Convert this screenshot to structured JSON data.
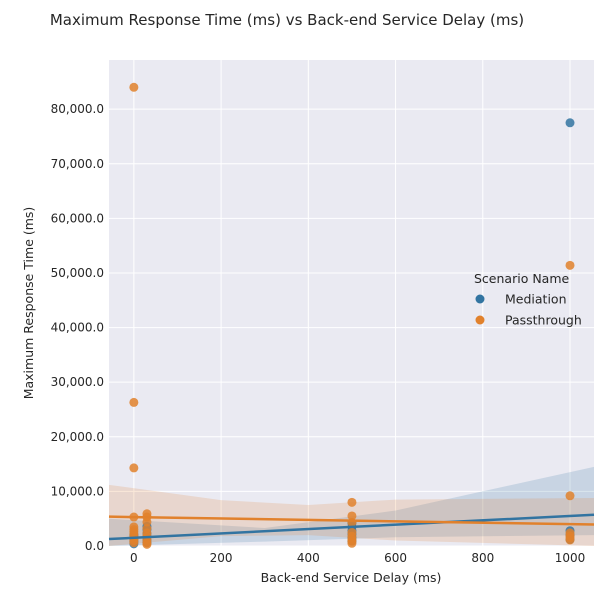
{
  "chart_data": {
    "type": "scatter",
    "title": "Maximum Response Time (ms) vs Back-end Service Delay (ms)",
    "xlabel": "Back-end Service Delay (ms)",
    "ylabel": "Maximum Response Time (ms)",
    "xlim": [
      -57,
      1055
    ],
    "ylim": [
      0,
      89000
    ],
    "xticks": [
      0,
      200,
      400,
      600,
      800,
      1000
    ],
    "xtick_labels": [
      "0",
      "200",
      "400",
      "600",
      "800",
      "1000"
    ],
    "yticks": [
      0,
      10000,
      20000,
      30000,
      40000,
      50000,
      60000,
      70000,
      80000
    ],
    "ytick_labels": [
      "0.0",
      "10,000.0",
      "20,000.0",
      "30,000.0",
      "40,000.0",
      "50,000.0",
      "60,000.0",
      "70,000.0",
      "80,000.0"
    ],
    "grid": true,
    "legend_title": "Scenario Name",
    "legend_position": "right",
    "series": [
      {
        "name": "Mediation",
        "color": "#3274a1",
        "points": [
          [
            0,
            400
          ],
          [
            0,
            800
          ],
          [
            0,
            1200
          ],
          [
            0,
            1600
          ],
          [
            0,
            2000
          ],
          [
            30,
            600
          ],
          [
            30,
            1100
          ],
          [
            30,
            1700
          ],
          [
            30,
            2300
          ],
          [
            30,
            3000
          ],
          [
            30,
            3600
          ],
          [
            500,
            900
          ],
          [
            500,
            1500
          ],
          [
            500,
            2200
          ],
          [
            500,
            2800
          ],
          [
            500,
            3500
          ],
          [
            500,
            4200
          ],
          [
            1000,
            1200
          ],
          [
            1000,
            2000
          ],
          [
            1000,
            2800
          ],
          [
            1000,
            77500
          ]
        ],
        "regression": {
          "intercept": 1500,
          "slope": 4.0
        },
        "ci": [
          [
            -57,
            -2500,
            5000
          ],
          [
            300,
            800,
            3300
          ],
          [
            600,
            1600,
            6500
          ],
          [
            1055,
            2000,
            14500
          ]
        ]
      },
      {
        "name": "Passthrough",
        "color": "#e1812c",
        "points": [
          [
            0,
            84000
          ],
          [
            0,
            26300
          ],
          [
            0,
            14300
          ],
          [
            0,
            5300
          ],
          [
            0,
            3500
          ],
          [
            0,
            3000
          ],
          [
            0,
            2600
          ],
          [
            0,
            2200
          ],
          [
            0,
            1800
          ],
          [
            0,
            1400
          ],
          [
            0,
            1000
          ],
          [
            0,
            600
          ],
          [
            30,
            5900
          ],
          [
            30,
            5300
          ],
          [
            30,
            4400
          ],
          [
            30,
            3200
          ],
          [
            30,
            2400
          ],
          [
            30,
            1800
          ],
          [
            30,
            1200
          ],
          [
            30,
            600
          ],
          [
            30,
            300
          ],
          [
            500,
            8000
          ],
          [
            500,
            5500
          ],
          [
            500,
            4300
          ],
          [
            500,
            2500
          ],
          [
            500,
            1800
          ],
          [
            500,
            1300
          ],
          [
            500,
            900
          ],
          [
            500,
            500
          ],
          [
            1000,
            51400
          ],
          [
            1000,
            9200
          ],
          [
            1000,
            2400
          ],
          [
            1000,
            1900
          ],
          [
            1000,
            1500
          ],
          [
            1000,
            1100
          ]
        ],
        "regression": {
          "intercept": 5300,
          "slope": -1.3
        },
        "ci": [
          [
            -57,
            11200,
            -500
          ],
          [
            200,
            8400,
            1800
          ],
          [
            400,
            7500,
            2000
          ],
          [
            600,
            8500,
            1000
          ],
          [
            1055,
            8800,
            -1000
          ]
        ]
      }
    ]
  }
}
